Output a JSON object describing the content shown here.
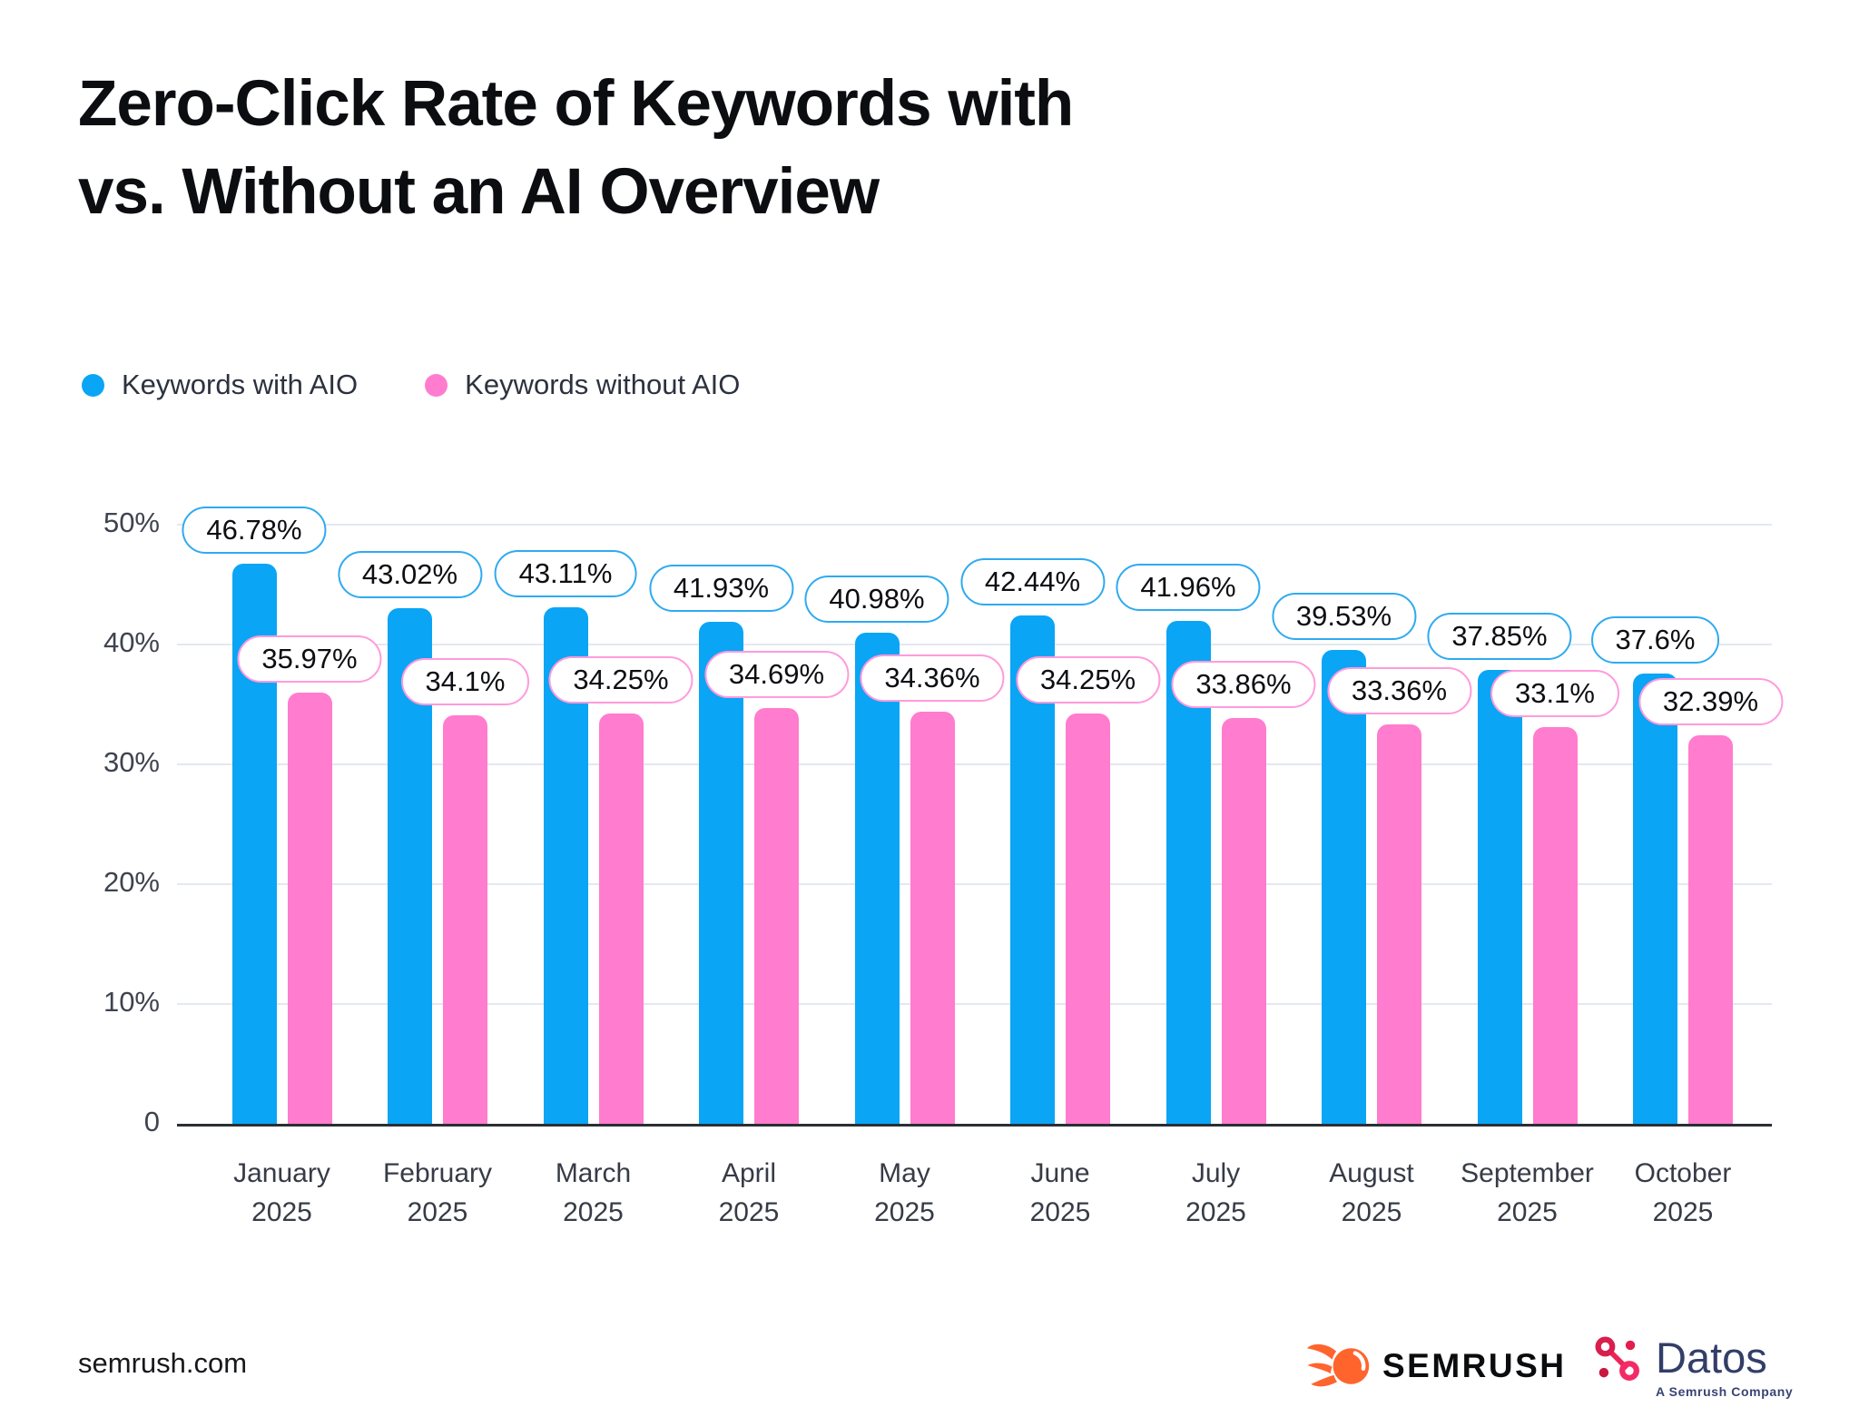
{
  "header": {
    "title_line1": "Zero-Click Rate of Keywords with",
    "title_line2": "vs. Without an AI Overview"
  },
  "legend": {
    "items": [
      {
        "label": "Keywords with AIO",
        "color": "#0aa5f5"
      },
      {
        "label": "Keywords without AIO",
        "color": "#ff7cce"
      }
    ]
  },
  "chart_data": {
    "type": "bar",
    "title": "Zero-Click Rate of Keywords with vs. Without an AI Overview",
    "categories": [
      "January 2025",
      "February 2025",
      "March 2025",
      "April 2025",
      "May 2025",
      "June 2025",
      "July 2025",
      "August 2025",
      "September 2025",
      "October 2025"
    ],
    "series": [
      {
        "name": "Keywords with AIO",
        "color": "#0aa5f5",
        "pill_border_color": "#2faaf0",
        "values": [
          46.78,
          43.02,
          43.11,
          41.93,
          40.98,
          42.44,
          41.96,
          39.53,
          37.85,
          37.6
        ],
        "data_labels": [
          "46.78%",
          "43.02%",
          "43.11%",
          "41.93%",
          "40.98%",
          "42.44%",
          "41.96%",
          "39.53%",
          "37.85%",
          "37.6%"
        ]
      },
      {
        "name": "Keywords without AIO",
        "color": "#ff7cce",
        "pill_border_color": "#ff9bdc",
        "values": [
          35.97,
          34.1,
          34.25,
          34.69,
          34.36,
          34.25,
          33.86,
          33.36,
          33.1,
          32.39
        ],
        "data_labels": [
          "35.97%",
          "34.1%",
          "34.25%",
          "34.69%",
          "34.36%",
          "34.25%",
          "33.86%",
          "33.36%",
          "33.1%",
          "32.39%"
        ]
      }
    ],
    "xlabel": "",
    "ylabel": "",
    "y_ticks": [
      "50%",
      "40%",
      "30%",
      "20%",
      "10%",
      "0"
    ],
    "y_tick_values": [
      50,
      40,
      30,
      20,
      10,
      0
    ],
    "ylim": [
      0,
      50
    ],
    "grid": true,
    "legend_position": "top-left",
    "data_label_style": "pill bubble above each bar"
  },
  "footer": {
    "source": "semrush.com",
    "semrush_logo_text": "SEMRUSH",
    "datos_logo_text": "Datos",
    "datos_logo_subtext": "A Semrush Company"
  }
}
